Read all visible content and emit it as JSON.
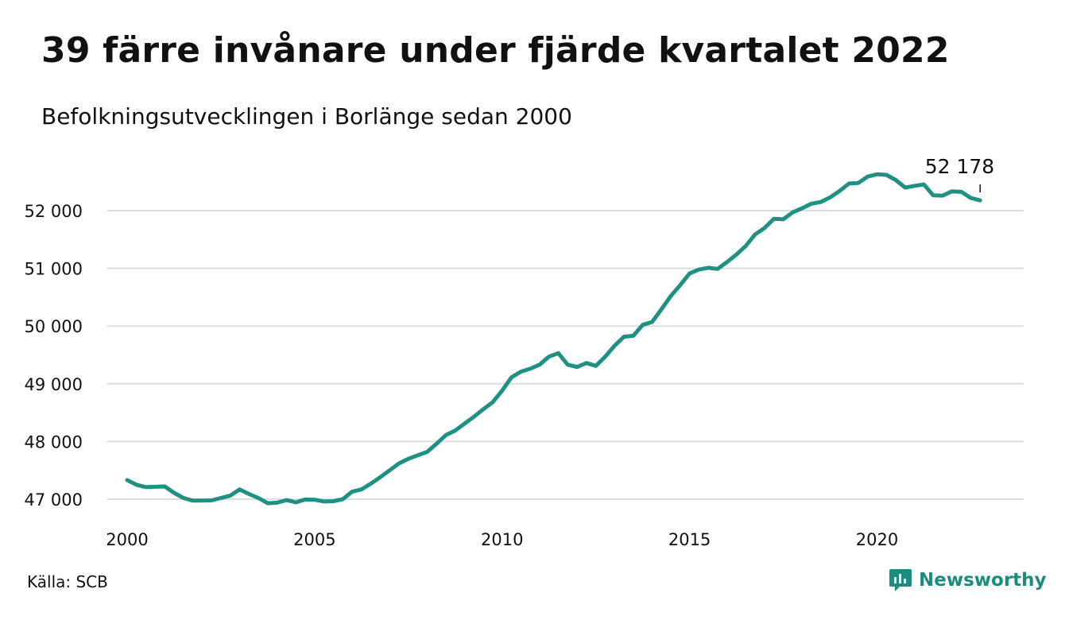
{
  "title": "39 färre invånare under fjärde kvartalet 2022",
  "subtitle": "Befolkningsutvecklingen i Borlänge sedan 2000",
  "source": "Källa: SCB",
  "brand": "Newsworthy",
  "colors": {
    "line": "#1f9182",
    "grid": "#dddddd",
    "brand": "#1b8c7f",
    "text": "#111111"
  },
  "chart_data": {
    "type": "line",
    "title": "39 färre invånare under fjärde kvartalet 2022",
    "subtitle": "Befolkningsutvecklingen i Borlänge sedan 2000",
    "xlabel": "",
    "ylabel": "",
    "x_ticks": [
      "2000",
      "2005",
      "2010",
      "2015",
      "2020"
    ],
    "y_ticks": [
      "47 000",
      "48 000",
      "49 000",
      "50 000",
      "51 000",
      "52 000"
    ],
    "ylim": [
      46800,
      52900
    ],
    "xlim": [
      1999.92,
      2023.3
    ],
    "grid": "horizontal",
    "end_label": "52 178",
    "x": [
      2000.0,
      2000.25,
      2000.5,
      2000.75,
      2001.0,
      2001.25,
      2001.5,
      2001.75,
      2002.0,
      2002.25,
      2002.5,
      2002.75,
      2003.0,
      2003.25,
      2003.5,
      2003.75,
      2004.0,
      2004.25,
      2004.5,
      2004.75,
      2005.0,
      2005.25,
      2005.5,
      2005.75,
      2006.0,
      2006.25,
      2006.5,
      2006.75,
      2007.0,
      2007.25,
      2007.5,
      2007.75,
      2008.0,
      2008.25,
      2008.5,
      2008.75,
      2009.0,
      2009.25,
      2009.5,
      2009.75,
      2010.0,
      2010.25,
      2010.5,
      2010.75,
      2011.0,
      2011.25,
      2011.5,
      2011.75,
      2012.0,
      2012.25,
      2012.5,
      2012.75,
      2013.0,
      2013.25,
      2013.5,
      2013.75,
      2014.0,
      2014.25,
      2014.5,
      2014.75,
      2015.0,
      2015.25,
      2015.5,
      2015.75,
      2016.0,
      2016.25,
      2016.5,
      2016.75,
      2017.0,
      2017.25,
      2017.5,
      2017.75,
      2018.0,
      2018.25,
      2018.5,
      2018.75,
      2019.0,
      2019.25,
      2019.5,
      2019.75,
      2020.0,
      2020.25,
      2020.5,
      2020.75,
      2021.0,
      2021.25,
      2021.5,
      2021.75,
      2022.0,
      2022.25,
      2022.5,
      2022.75
    ],
    "series": [
      {
        "values": [
          47330,
          47250,
          47210,
          47215,
          47220,
          47110,
          47020,
          46975,
          46975,
          46980,
          47020,
          47060,
          47170,
          47090,
          47020,
          46930,
          46940,
          46985,
          46945,
          46995,
          46990,
          46960,
          46965,
          47000,
          47130,
          47170,
          47270,
          47380,
          47500,
          47620,
          47700,
          47760,
          47820,
          47960,
          48110,
          48190,
          48310,
          48430,
          48560,
          48680,
          48880,
          49110,
          49210,
          49260,
          49330,
          49470,
          49530,
          49330,
          49290,
          49360,
          49310,
          49470,
          49660,
          49815,
          49830,
          50020,
          50070,
          50290,
          50520,
          50710,
          50910,
          50980,
          51010,
          50990,
          51110,
          51240,
          51390,
          51590,
          51700,
          51860,
          51850,
          51970,
          52040,
          52120,
          52150,
          52230,
          52340,
          52470,
          52480,
          52590,
          52630,
          52620,
          52530,
          52400,
          52430,
          52455,
          52265,
          52260,
          52335,
          52325,
          52220,
          52178
        ]
      }
    ]
  }
}
